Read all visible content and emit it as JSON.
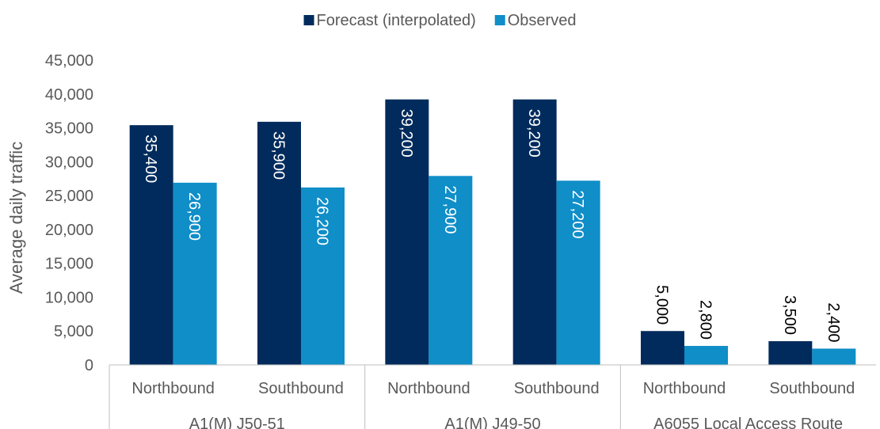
{
  "chart_data": {
    "type": "bar",
    "title": "",
    "xlabel": "",
    "ylabel": "Average daily traffic",
    "ylim": [
      0,
      45000
    ],
    "yticks": [
      0,
      5000,
      10000,
      15000,
      20000,
      25000,
      30000,
      35000,
      40000,
      45000
    ],
    "ytick_labels": [
      "0",
      "5,000",
      "10,000",
      "15,000",
      "20,000",
      "25,000",
      "30,000",
      "35,000",
      "40,000",
      "45,000"
    ],
    "grid": false,
    "legend_position": "top",
    "groups": [
      {
        "label": "A1(M) J50-51",
        "categories": [
          "Northbound",
          "Southbound"
        ]
      },
      {
        "label": "A1(M) J49-50",
        "categories": [
          "Northbound",
          "Southbound"
        ]
      },
      {
        "label": "A6055 Local Access Route",
        "categories": [
          "Northbound",
          "Southbound"
        ]
      }
    ],
    "categories": [
      "Northbound",
      "Southbound",
      "Northbound",
      "Southbound",
      "Northbound",
      "Southbound"
    ],
    "series": [
      {
        "name": "Forecast (interpolated)",
        "color": "#002b5c",
        "values": [
          35400,
          35900,
          39200,
          39200,
          5000,
          3500
        ],
        "labels": [
          "35,400",
          "35,900",
          "39,200",
          "39,200",
          "5,000",
          "3,500"
        ]
      },
      {
        "name": "Observed",
        "color": "#0f8ec8",
        "values": [
          26900,
          26200,
          27900,
          27200,
          2800,
          2400
        ],
        "labels": [
          "26,900",
          "26,200",
          "27,900",
          "27,200",
          "2,800",
          "2,400"
        ]
      }
    ]
  }
}
